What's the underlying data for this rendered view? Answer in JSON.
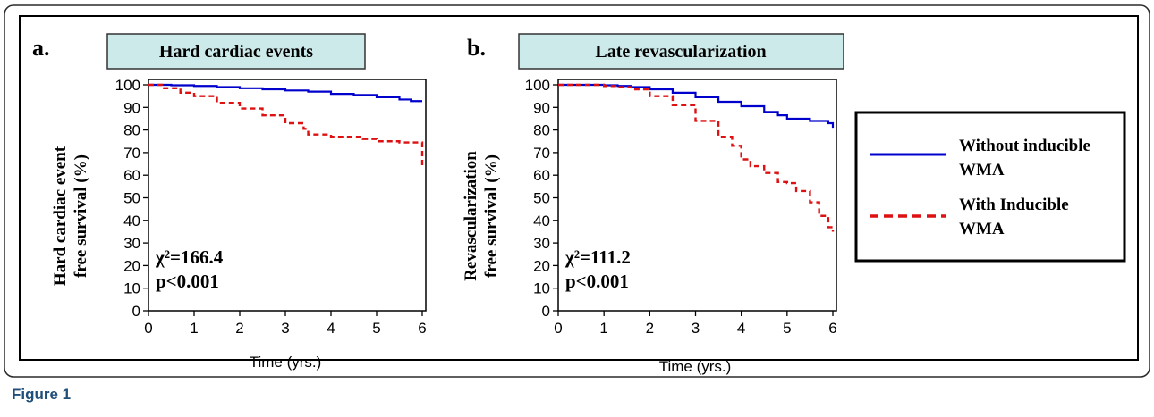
{
  "figure_caption": "Figure 1",
  "legend": {
    "items": [
      {
        "line1": "Without inducible",
        "line2": "WMA",
        "color": "#0000cc",
        "style": "solid"
      },
      {
        "line1": "With Inducible",
        "line2": "WMA",
        "color": "#dd1111",
        "style": "dashed"
      }
    ]
  },
  "chart_data": [
    {
      "type": "line",
      "panel_label": "a.",
      "title": "Hard cardiac events",
      "ylabel": [
        "Hard cardiac event",
        "free survival (%)"
      ],
      "xlabel": "Time (yrs.)",
      "xlim": [
        0,
        6
      ],
      "ylim": [
        0,
        100
      ],
      "xticks": [
        0,
        1,
        2,
        3,
        4,
        5,
        6
      ],
      "yticks": [
        0,
        10,
        20,
        30,
        40,
        50,
        60,
        70,
        80,
        90,
        100
      ],
      "stat_chi": "χ²=166.4",
      "stat_p": "p<0.001",
      "series": [
        {
          "name": "Without inducible WMA",
          "color": "#0000cc",
          "style": "solid",
          "x": [
            0,
            0.5,
            1,
            1.5,
            2,
            2.5,
            3,
            3.5,
            4,
            4.5,
            5,
            5.5,
            5.75,
            6
          ],
          "y": [
            100,
            99.8,
            99.5,
            99,
            98.5,
            98,
            97.5,
            97,
            96,
            95.5,
            94.5,
            93.5,
            92.8,
            92.8
          ]
        },
        {
          "name": "With Inducible WMA",
          "color": "#dd1111",
          "style": "dashed",
          "x": [
            0,
            0.3,
            0.7,
            1,
            1.5,
            2,
            2.5,
            3,
            3.4,
            3.5,
            4,
            4.7,
            5,
            5.5,
            5.9,
            6,
            6
          ],
          "y": [
            100,
            98.5,
            96.5,
            95,
            92,
            89.5,
            86.5,
            83,
            80.5,
            78,
            77,
            76,
            75,
            74.5,
            74.5,
            74.5,
            63
          ]
        }
      ]
    },
    {
      "type": "line",
      "panel_label": "b.",
      "title": "Late revascularization",
      "ylabel": [
        "Revascularization",
        "free survival (%)"
      ],
      "xlabel": "Time (yrs.)",
      "xlim": [
        0,
        6
      ],
      "ylim": [
        0,
        100
      ],
      "xticks": [
        0,
        1,
        2,
        3,
        4,
        5,
        6
      ],
      "yticks": [
        0,
        10,
        20,
        30,
        40,
        50,
        60,
        70,
        80,
        90,
        100
      ],
      "stat_chi": "χ²=111.2",
      "stat_p": "p<0.001",
      "series": [
        {
          "name": "Without inducible WMA",
          "color": "#0000cc",
          "style": "solid",
          "x": [
            0,
            0.5,
            1,
            1.3,
            1.6,
            2,
            2.5,
            3,
            3.5,
            4,
            4.5,
            4.8,
            5,
            5.5,
            5.9,
            6
          ],
          "y": [
            100,
            100,
            99.8,
            99.5,
            99,
            98,
            96.5,
            94.5,
            92.5,
            90.5,
            88,
            86.5,
            85,
            84,
            83,
            81
          ]
        },
        {
          "name": "With Inducible WMA",
          "color": "#dd1111",
          "style": "dashed",
          "x": [
            0,
            0.5,
            1,
            1.3,
            1.6,
            2,
            2.5,
            3,
            3.5,
            3.8,
            4,
            4.2,
            4.5,
            4.8,
            5,
            5.2,
            5.5,
            5.7,
            5.9,
            6
          ],
          "y": [
            100,
            100,
            99.5,
            99,
            98,
            95,
            91,
            84,
            77,
            73,
            67,
            64,
            61,
            57,
            56.5,
            53,
            48,
            42,
            37,
            35
          ]
        }
      ]
    }
  ]
}
